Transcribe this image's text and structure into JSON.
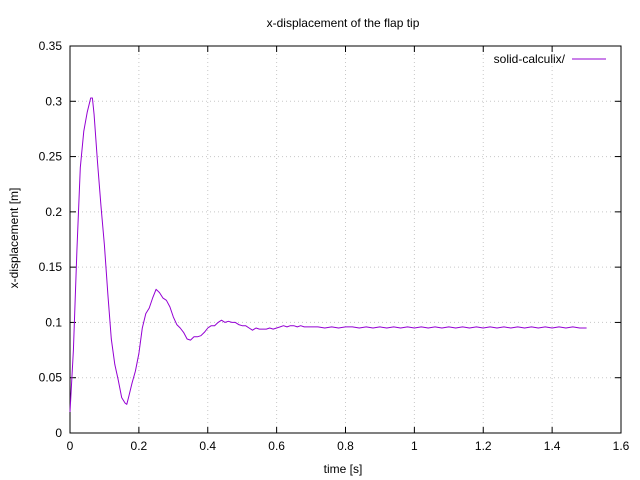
{
  "chart_data": {
    "type": "line",
    "title": "x-displacement of the flap tip",
    "xlabel": "time [s]",
    "ylabel": "x-displacement [m]",
    "xlim": [
      0,
      1.6
    ],
    "ylim": [
      0,
      0.35
    ],
    "x_ticks": [
      "0",
      "0.2",
      "0.4",
      "0.6",
      "0.8",
      "1",
      "1.2",
      "1.4",
      "1.6"
    ],
    "y_ticks": [
      "0",
      "0.05",
      "0.1",
      "0.15",
      "0.2",
      "0.25",
      "0.3",
      "0.35"
    ],
    "grid": true,
    "legend_position": "top-right",
    "series": [
      {
        "name": "solid-calculix/",
        "color": "#9400d3",
        "x": [
          0.0,
          0.01,
          0.02,
          0.03,
          0.04,
          0.05,
          0.06,
          0.065,
          0.07,
          0.08,
          0.09,
          0.1,
          0.11,
          0.12,
          0.13,
          0.14,
          0.15,
          0.16,
          0.165,
          0.17,
          0.18,
          0.19,
          0.2,
          0.21,
          0.22,
          0.23,
          0.24,
          0.25,
          0.26,
          0.27,
          0.28,
          0.29,
          0.3,
          0.31,
          0.32,
          0.33,
          0.34,
          0.35,
          0.36,
          0.37,
          0.38,
          0.39,
          0.4,
          0.41,
          0.42,
          0.43,
          0.44,
          0.45,
          0.46,
          0.47,
          0.48,
          0.49,
          0.5,
          0.51,
          0.52,
          0.53,
          0.54,
          0.55,
          0.56,
          0.57,
          0.58,
          0.59,
          0.6,
          0.61,
          0.62,
          0.63,
          0.64,
          0.65,
          0.66,
          0.67,
          0.68,
          0.7,
          0.72,
          0.74,
          0.76,
          0.78,
          0.8,
          0.82,
          0.84,
          0.86,
          0.88,
          0.9,
          0.92,
          0.94,
          0.96,
          0.98,
          1.0,
          1.02,
          1.04,
          1.06,
          1.08,
          1.1,
          1.12,
          1.14,
          1.16,
          1.18,
          1.2,
          1.22,
          1.24,
          1.26,
          1.28,
          1.3,
          1.32,
          1.34,
          1.36,
          1.38,
          1.4,
          1.42,
          1.44,
          1.46,
          1.48,
          1.5
        ],
        "values": [
          0.019,
          0.075,
          0.165,
          0.24,
          0.273,
          0.29,
          0.303,
          0.303,
          0.288,
          0.245,
          0.205,
          0.17,
          0.125,
          0.085,
          0.062,
          0.048,
          0.032,
          0.027,
          0.026,
          0.032,
          0.045,
          0.056,
          0.072,
          0.095,
          0.108,
          0.113,
          0.122,
          0.13,
          0.127,
          0.122,
          0.12,
          0.114,
          0.105,
          0.098,
          0.095,
          0.091,
          0.085,
          0.084,
          0.087,
          0.087,
          0.088,
          0.091,
          0.095,
          0.097,
          0.097,
          0.1,
          0.102,
          0.1,
          0.101,
          0.1,
          0.1,
          0.098,
          0.097,
          0.097,
          0.095,
          0.093,
          0.095,
          0.094,
          0.094,
          0.094,
          0.095,
          0.094,
          0.095,
          0.096,
          0.097,
          0.096,
          0.097,
          0.097,
          0.096,
          0.097,
          0.096,
          0.096,
          0.096,
          0.095,
          0.096,
          0.095,
          0.096,
          0.096,
          0.095,
          0.096,
          0.095,
          0.096,
          0.095,
          0.096,
          0.095,
          0.096,
          0.095,
          0.096,
          0.095,
          0.096,
          0.095,
          0.096,
          0.095,
          0.096,
          0.095,
          0.096,
          0.095,
          0.096,
          0.095,
          0.096,
          0.095,
          0.096,
          0.095,
          0.096,
          0.095,
          0.096,
          0.095,
          0.096,
          0.095,
          0.096,
          0.095,
          0.095
        ]
      }
    ]
  }
}
